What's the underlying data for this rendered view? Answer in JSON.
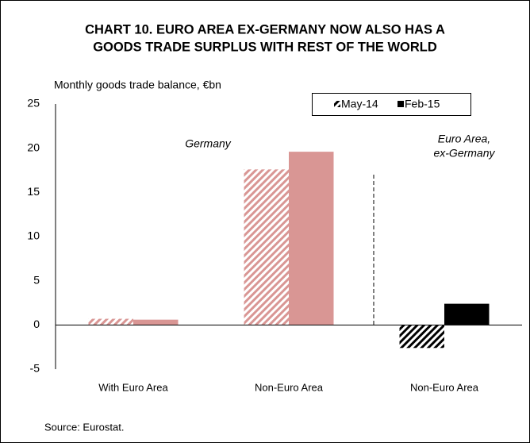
{
  "chart_data": {
    "type": "bar",
    "title": [
      "CHART 10. EURO AREA EX-GERMANY NOW ALSO HAS A",
      "GOODS TRADE SURPLUS WITH REST OF THE WORLD"
    ],
    "y_label": "Monthly goods trade balance, €bn",
    "categories": [
      "With Euro Area",
      "Non-Euro Area",
      "Non-Euro Area"
    ],
    "series": [
      {
        "name": "May-14",
        "pattern": "hatch",
        "legend_color": "#000000",
        "colors": [
          "#d99694",
          "#d99694",
          "#000000"
        ],
        "values": [
          0.7,
          17.6,
          -2.6
        ]
      },
      {
        "name": "Feb-15",
        "pattern": "solid",
        "legend_color": "#000000",
        "colors": [
          "#d99694",
          "#d99694",
          "#000000"
        ],
        "values": [
          0.6,
          19.6,
          2.4
        ]
      }
    ],
    "ylim": [
      -5,
      25
    ],
    "yticks": [
      -5,
      0,
      5,
      10,
      15,
      20,
      25
    ],
    "grid": false,
    "legend": "top-right",
    "annotations": [
      [
        "Germany"
      ],
      [
        "Euro Area,",
        "ex-Germany"
      ]
    ],
    "source": "Source: Eurostat."
  }
}
